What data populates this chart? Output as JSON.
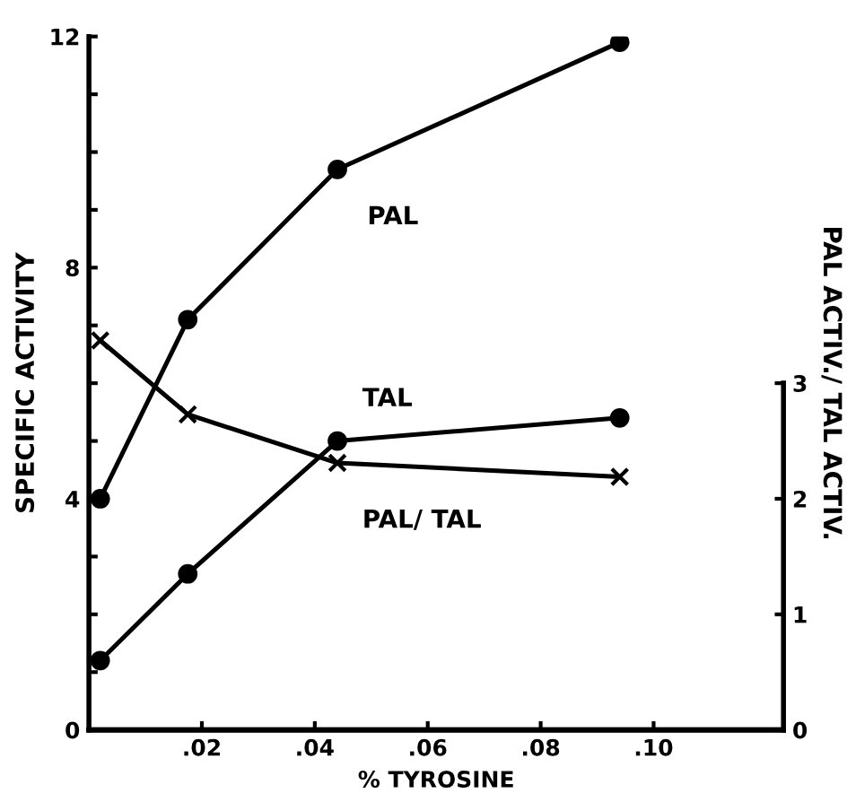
{
  "chart_data": {
    "type": "line",
    "xlabel": "% TYROSINE",
    "ylabel": "SPECIFIC ACTIVITY",
    "y2label": "PAL ACTIV./ TAL ACTIV.",
    "x": [
      0.002,
      0.0175,
      0.044,
      0.094
    ],
    "series": [
      {
        "name": "PAL",
        "color": "#000000",
        "marker": "circle",
        "values": [
          4.0,
          7.1,
          9.7,
          11.9
        ]
      },
      {
        "name": "TAL",
        "color": "#000000",
        "marker": "circle",
        "values": [
          1.2,
          2.7,
          5.0,
          5.4
        ]
      },
      {
        "name": "PAL/ TAL",
        "color": "#000000",
        "marker": "cross",
        "axis": "y2",
        "values": [
          3.37,
          2.73,
          2.31,
          2.19
        ]
      }
    ],
    "xlim": [
      0,
      0.123
    ],
    "xticks": [
      {
        "value": 0.02,
        "label": ".02"
      },
      {
        "value": 0.04,
        "label": ".04"
      },
      {
        "value": 0.06,
        "label": ".06"
      },
      {
        "value": 0.08,
        "label": ".08"
      },
      {
        "value": 0.1,
        "label": ".10"
      }
    ],
    "ylim": [
      0,
      12
    ],
    "yticks": [
      0,
      {
        "value": 1,
        "label": null
      },
      {
        "value": 2,
        "label": null
      },
      {
        "value": 3,
        "label": null
      },
      4,
      {
        "value": 5,
        "label": null
      },
      {
        "value": 6,
        "label": null
      },
      {
        "value": 7,
        "label": null
      },
      8,
      {
        "value": 9,
        "label": null
      },
      {
        "value": 10,
        "label": null
      },
      {
        "value": 11,
        "label": null
      },
      12
    ],
    "y2lim": [
      0,
      6
    ],
    "y2ticks": [
      0,
      1,
      2,
      3
    ],
    "grid": false,
    "legend": false,
    "line_style": "solid"
  }
}
